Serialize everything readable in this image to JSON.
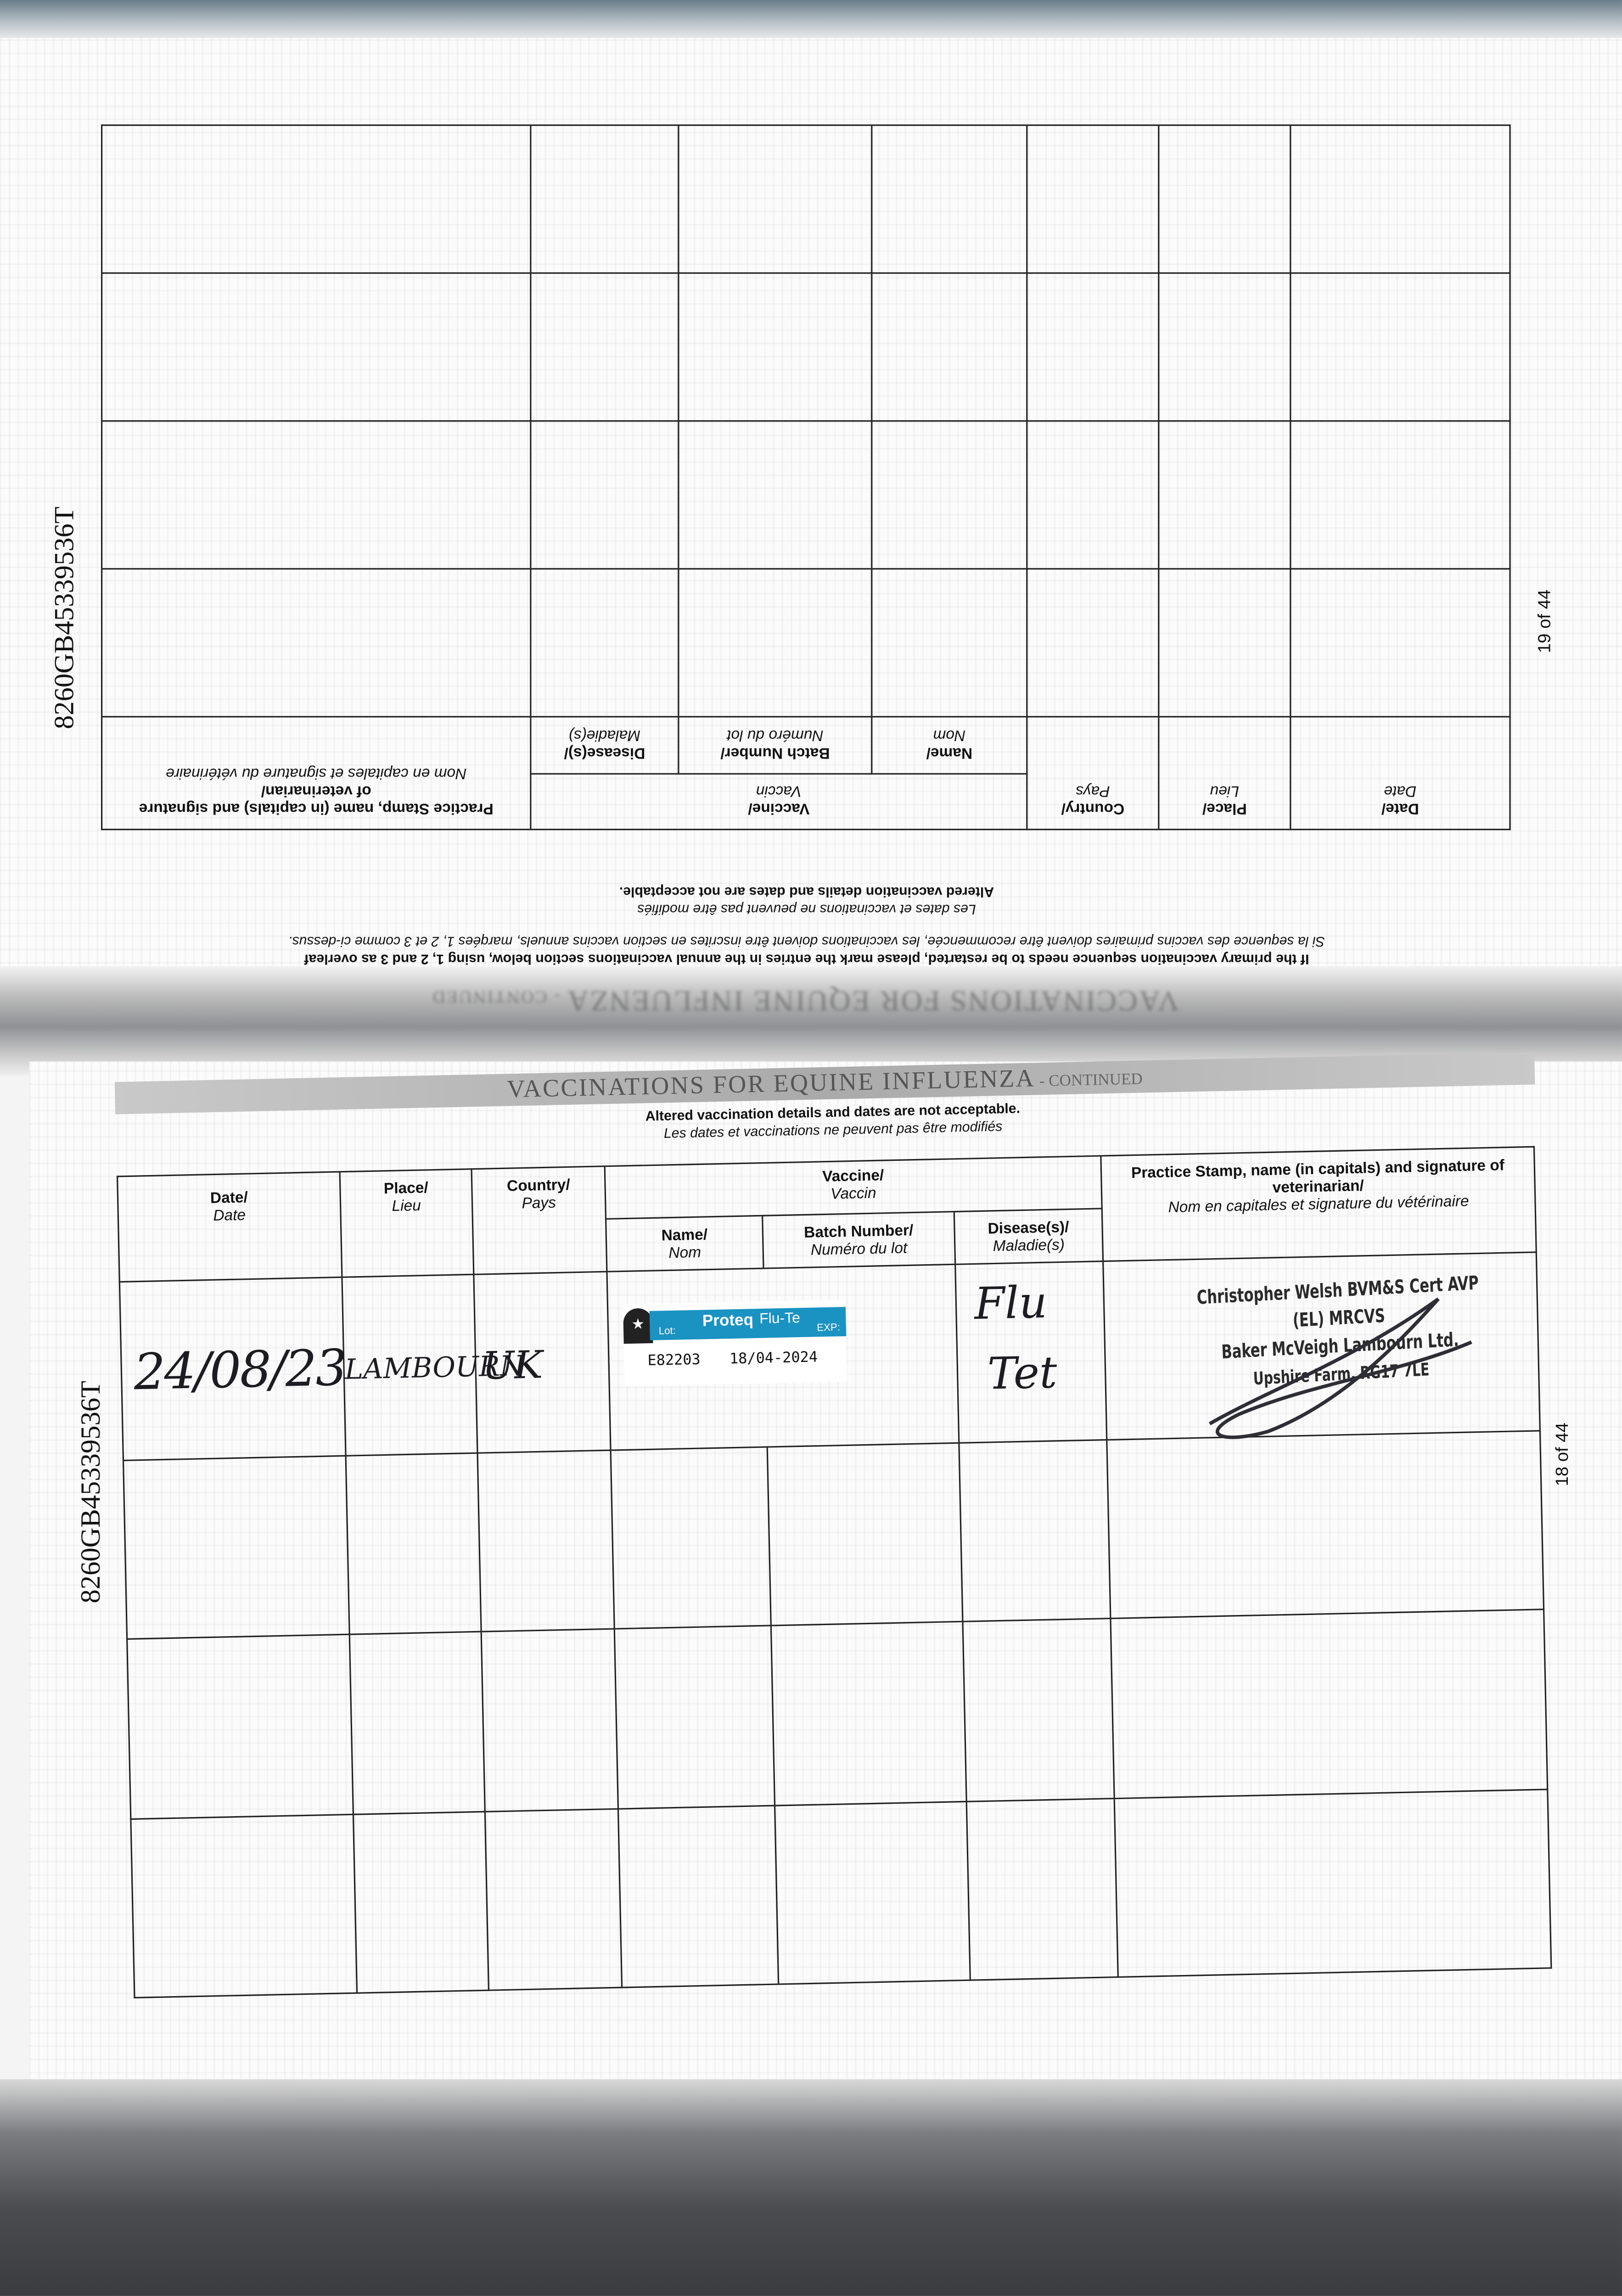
{
  "document": {
    "serial_number": "8260GB45339536T",
    "section_title": "VACCINATIONS FOR EQUINE INFLUENZA",
    "section_suffix": " - CONTINUED",
    "notes": {
      "altered_en": "Altered vaccination details and dates are not acceptable.",
      "altered_fr": "Les dates et vaccinations ne peuvent pas être modifiés",
      "restart_en": "If the primary vaccination sequence needs to be restarted, please mark the entries in the annual vaccinations section below, using 1, 2 and 3 as overleaf",
      "restart_fr": "Si la sequence des vaccins primaires doivent être recommencée, les vaccinations doivent être inscrites en section vaccins annuels, marqées 1, 2 et 3 comme ci-dessus."
    },
    "columns": {
      "date": {
        "en": "Date/",
        "fr": "Date"
      },
      "place": {
        "en": "Place/",
        "fr": "Lieu"
      },
      "country": {
        "en": "Country/",
        "fr": "Pays"
      },
      "vaccine": {
        "en": "Vaccine/",
        "fr": "Vaccin"
      },
      "name": {
        "en": "Name/",
        "fr": "Nom"
      },
      "batch": {
        "en": "Batch Number/",
        "fr": "Numéro du lot"
      },
      "diseases": {
        "en": "Disease(s)/",
        "fr": "Maladie(s)"
      },
      "practice": {
        "en": "Practice Stamp, name (in capitals) and signature of veterinarian/",
        "fr": "Nom en capitales et signature du vétérinaire"
      }
    }
  },
  "page_19": {
    "page_label": "19 of 44",
    "rows": 4
  },
  "page_18": {
    "page_label": "18 of 44",
    "entries": [
      {
        "date": "24/08/23",
        "place": "LAMBOURN",
        "country": "UK",
        "vaccine_label": {
          "brand": "Proteq",
          "product": "Flu-Te",
          "lot_label": "Lot:",
          "exp_label": "EXP:",
          "lot": "E82203",
          "expiry": "18/04-2024",
          "color": "#1a92c2"
        },
        "diseases_line1": "Flu",
        "diseases_line2": "Tet",
        "stamp": {
          "line1": "Christopher Welsh BVM&S Cert AVP (EL) MRCVS",
          "line2": "Baker McVeigh Lambourn Ltd.",
          "line3": "Upshire Farm, RG17 7LE"
        }
      }
    ],
    "empty_rows": 3
  }
}
